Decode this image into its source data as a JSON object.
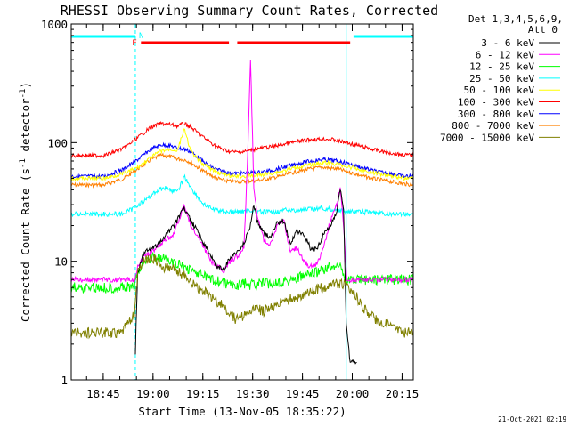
{
  "chart_data": {
    "type": "line",
    "title": "RHESSI Observing Summary Count Rates, Corrected",
    "xlabel": "Start Time (13-Nov-05 18:35:22)",
    "ylabel": "Corrected Count Rate (s⁻¹ detector⁻¹)",
    "ylabel_parts": [
      "Corrected Count Rate (s",
      "-1",
      " detector",
      "-1",
      ")"
    ],
    "y_scale": "log",
    "ylim": [
      1,
      1000
    ],
    "xlim_minutes": [
      0,
      103
    ],
    "y_ticks": [
      {
        "value": 1,
        "label": "1"
      },
      {
        "value": 10,
        "label": "10"
      },
      {
        "value": 100,
        "label": "100"
      },
      {
        "value": 1000,
        "label": "1000"
      }
    ],
    "x_ticks": [
      {
        "minute": 9.63,
        "label": "18:45"
      },
      {
        "minute": 24.63,
        "label": "19:00"
      },
      {
        "minute": 39.63,
        "label": "19:15"
      },
      {
        "minute": 54.63,
        "label": "19:30"
      },
      {
        "minute": 69.63,
        "label": "19:45"
      },
      {
        "minute": 84.63,
        "label": "20:00"
      },
      {
        "minute": 99.63,
        "label": "20:15"
      }
    ],
    "detector_info": [
      "Det 1,3,4,5,6,9,",
      "Att 0"
    ],
    "grid": false,
    "legend_position": "right",
    "series": [
      {
        "name": "3 - 6 keV",
        "color": "#000000",
        "points": [
          [
            19.3,
            1.7
          ],
          [
            20,
            8
          ],
          [
            22,
            12
          ],
          [
            25,
            13
          ],
          [
            28,
            16
          ],
          [
            31,
            20
          ],
          [
            34,
            28
          ],
          [
            36,
            22
          ],
          [
            38,
            18
          ],
          [
            40,
            14
          ],
          [
            42,
            11
          ],
          [
            44,
            9
          ],
          [
            46,
            8.5
          ],
          [
            48,
            11
          ],
          [
            50,
            12
          ],
          [
            52,
            14
          ],
          [
            54,
            20
          ],
          [
            55,
            30
          ],
          [
            56,
            22
          ],
          [
            58,
            17
          ],
          [
            60,
            16
          ],
          [
            62,
            21
          ],
          [
            64,
            22
          ],
          [
            66,
            14
          ],
          [
            68,
            18
          ],
          [
            70,
            17
          ],
          [
            72,
            13
          ],
          [
            74,
            12.5
          ],
          [
            76,
            17
          ],
          [
            78,
            20
          ],
          [
            80,
            26
          ],
          [
            81,
            40
          ],
          [
            82,
            28
          ],
          [
            82.8,
            3
          ],
          [
            84,
            1.4
          ],
          [
            86,
            1.4
          ]
        ]
      },
      {
        "name": "6 - 12 keV",
        "color": "#ff00ff",
        "points": [
          [
            0,
            7
          ],
          [
            19,
            7
          ],
          [
            20,
            9
          ],
          [
            22,
            11
          ],
          [
            25,
            12.5
          ],
          [
            28,
            15
          ],
          [
            31,
            17
          ],
          [
            34,
            30
          ],
          [
            36,
            20
          ],
          [
            38,
            16
          ],
          [
            40,
            13
          ],
          [
            42,
            10
          ],
          [
            44,
            9
          ],
          [
            46,
            8.3
          ],
          [
            48,
            10
          ],
          [
            50,
            11
          ],
          [
            52,
            13
          ],
          [
            53,
            60
          ],
          [
            54,
            500
          ],
          [
            55,
            40
          ],
          [
            56,
            25
          ],
          [
            58,
            15
          ],
          [
            60,
            14
          ],
          [
            62,
            20
          ],
          [
            64,
            22
          ],
          [
            66,
            12
          ],
          [
            68,
            13
          ],
          [
            70,
            10
          ],
          [
            72,
            9
          ],
          [
            74,
            9.5
          ],
          [
            76,
            13
          ],
          [
            78,
            22
          ],
          [
            80,
            30
          ],
          [
            81,
            42
          ],
          [
            82,
            20
          ],
          [
            83,
            7
          ],
          [
            103,
            7
          ]
        ]
      },
      {
        "name": "12 - 25 keV",
        "color": "#00ff00",
        "points": [
          [
            0,
            6
          ],
          [
            19,
            6
          ],
          [
            20,
            8
          ],
          [
            22,
            10
          ],
          [
            25,
            11
          ],
          [
            28,
            10.5
          ],
          [
            31,
            9.5
          ],
          [
            34,
            9
          ],
          [
            36,
            8.5
          ],
          [
            38,
            8
          ],
          [
            40,
            7.5
          ],
          [
            42,
            7
          ],
          [
            44,
            6.8
          ],
          [
            46,
            6.5
          ],
          [
            48,
            6.3
          ],
          [
            50,
            6.3
          ],
          [
            52,
            6.5
          ],
          [
            54,
            6.3
          ],
          [
            56,
            6.5
          ],
          [
            58,
            6.5
          ],
          [
            60,
            6.5
          ],
          [
            62,
            6.7
          ],
          [
            64,
            6.8
          ],
          [
            66,
            7
          ],
          [
            68,
            7.2
          ],
          [
            70,
            7.5
          ],
          [
            72,
            7.8
          ],
          [
            74,
            8
          ],
          [
            76,
            8.5
          ],
          [
            78,
            9
          ],
          [
            80,
            9.5
          ],
          [
            82,
            8
          ],
          [
            83,
            7
          ],
          [
            103,
            7
          ]
        ]
      },
      {
        "name": "25 - 50 keV",
        "color": "#00ffff",
        "points": [
          [
            0,
            25
          ],
          [
            15,
            25
          ],
          [
            18,
            27
          ],
          [
            20,
            30
          ],
          [
            22,
            32
          ],
          [
            25,
            38
          ],
          [
            28,
            42
          ],
          [
            30,
            40
          ],
          [
            32,
            38
          ],
          [
            34,
            52
          ],
          [
            36,
            42
          ],
          [
            38,
            35
          ],
          [
            40,
            30
          ],
          [
            42,
            28
          ],
          [
            44,
            27
          ],
          [
            46,
            26.5
          ],
          [
            48,
            26
          ],
          [
            50,
            26
          ],
          [
            52,
            26.5
          ],
          [
            54,
            27
          ],
          [
            56,
            26
          ],
          [
            60,
            26
          ],
          [
            65,
            27
          ],
          [
            70,
            27
          ],
          [
            75,
            28
          ],
          [
            80,
            27
          ],
          [
            85,
            26
          ],
          [
            90,
            26
          ],
          [
            95,
            25
          ],
          [
            103,
            25
          ]
        ]
      },
      {
        "name": "50 - 100 keV",
        "color": "#ffff00",
        "points": [
          [
            0,
            50
          ],
          [
            10,
            50
          ],
          [
            16,
            55
          ],
          [
            20,
            62
          ],
          [
            24,
            75
          ],
          [
            27,
            85
          ],
          [
            30,
            88
          ],
          [
            32,
            86
          ],
          [
            34,
            130
          ],
          [
            36,
            85
          ],
          [
            38,
            72
          ],
          [
            40,
            65
          ],
          [
            42,
            60
          ],
          [
            44,
            56
          ],
          [
            46,
            54
          ],
          [
            48,
            52
          ],
          [
            52,
            52
          ],
          [
            56,
            53
          ],
          [
            60,
            55
          ],
          [
            64,
            58
          ],
          [
            68,
            62
          ],
          [
            72,
            65
          ],
          [
            76,
            68
          ],
          [
            80,
            66
          ],
          [
            84,
            62
          ],
          [
            88,
            58
          ],
          [
            92,
            55
          ],
          [
            96,
            53
          ],
          [
            100,
            50
          ],
          [
            103,
            50
          ]
        ]
      },
      {
        "name": "100 - 300 keV",
        "color": "#ff0000",
        "points": [
          [
            0,
            78
          ],
          [
            10,
            78
          ],
          [
            16,
            90
          ],
          [
            20,
            110
          ],
          [
            24,
            135
          ],
          [
            27,
            145
          ],
          [
            30,
            142
          ],
          [
            32,
            138
          ],
          [
            34,
            145
          ],
          [
            36,
            135
          ],
          [
            38,
            122
          ],
          [
            40,
            110
          ],
          [
            42,
            100
          ],
          [
            44,
            92
          ],
          [
            46,
            87
          ],
          [
            48,
            84
          ],
          [
            50,
            83
          ],
          [
            52,
            84
          ],
          [
            54,
            86
          ],
          [
            56,
            89
          ],
          [
            60,
            92
          ],
          [
            64,
            97
          ],
          [
            68,
            102
          ],
          [
            72,
            106
          ],
          [
            76,
            107
          ],
          [
            78,
            107
          ],
          [
            80,
            104
          ],
          [
            84,
            98
          ],
          [
            88,
            92
          ],
          [
            92,
            86
          ],
          [
            96,
            82
          ],
          [
            100,
            79
          ],
          [
            103,
            78
          ]
        ]
      },
      {
        "name": "300 - 800 keV",
        "color": "#0000ff",
        "points": [
          [
            0,
            52
          ],
          [
            10,
            52
          ],
          [
            16,
            60
          ],
          [
            20,
            72
          ],
          [
            24,
            88
          ],
          [
            27,
            96
          ],
          [
            30,
            94
          ],
          [
            32,
            90
          ],
          [
            34,
            88
          ],
          [
            36,
            84
          ],
          [
            38,
            76
          ],
          [
            40,
            68
          ],
          [
            42,
            63
          ],
          [
            44,
            59
          ],
          [
            46,
            57
          ],
          [
            48,
            55
          ],
          [
            52,
            55
          ],
          [
            56,
            56
          ],
          [
            60,
            58
          ],
          [
            64,
            62
          ],
          [
            68,
            66
          ],
          [
            72,
            70
          ],
          [
            76,
            72
          ],
          [
            80,
            70
          ],
          [
            84,
            66
          ],
          [
            88,
            61
          ],
          [
            92,
            57
          ],
          [
            96,
            55
          ],
          [
            100,
            52
          ],
          [
            103,
            52
          ]
        ]
      },
      {
        "name": "800 - 7000 keV",
        "color": "#ff8000",
        "points": [
          [
            0,
            44
          ],
          [
            10,
            44
          ],
          [
            16,
            50
          ],
          [
            20,
            60
          ],
          [
            24,
            72
          ],
          [
            27,
            78
          ],
          [
            30,
            76
          ],
          [
            32,
            73
          ],
          [
            34,
            72
          ],
          [
            36,
            68
          ],
          [
            38,
            62
          ],
          [
            40,
            57
          ],
          [
            42,
            53
          ],
          [
            44,
            50
          ],
          [
            46,
            48
          ],
          [
            48,
            47
          ],
          [
            52,
            47
          ],
          [
            56,
            48
          ],
          [
            60,
            50
          ],
          [
            64,
            53
          ],
          [
            68,
            57
          ],
          [
            72,
            60
          ],
          [
            76,
            62
          ],
          [
            80,
            60
          ],
          [
            84,
            56
          ],
          [
            88,
            52
          ],
          [
            92,
            49
          ],
          [
            96,
            47
          ],
          [
            100,
            45
          ],
          [
            103,
            44
          ]
        ]
      },
      {
        "name": "7000 - 15000 keV",
        "color": "#808000",
        "points": [
          [
            0,
            2.5
          ],
          [
            15,
            2.5
          ],
          [
            17,
            3
          ],
          [
            19,
            3.5
          ],
          [
            20,
            8
          ],
          [
            22,
            10
          ],
          [
            25,
            10.5
          ],
          [
            28,
            9
          ],
          [
            31,
            8.5
          ],
          [
            34,
            7.5
          ],
          [
            36,
            6.5
          ],
          [
            38,
            6
          ],
          [
            40,
            5.5
          ],
          [
            42,
            5
          ],
          [
            44,
            4.5
          ],
          [
            46,
            4.2
          ],
          [
            48,
            3.5
          ],
          [
            50,
            3.2
          ],
          [
            52,
            3.5
          ],
          [
            54,
            3.8
          ],
          [
            56,
            4
          ],
          [
            58,
            3.8
          ],
          [
            60,
            4
          ],
          [
            62,
            4.2
          ],
          [
            64,
            4.5
          ],
          [
            66,
            4.8
          ],
          [
            68,
            5
          ],
          [
            70,
            5.2
          ],
          [
            72,
            5.5
          ],
          [
            74,
            5.8
          ],
          [
            76,
            6
          ],
          [
            78,
            6.2
          ],
          [
            80,
            6.5
          ],
          [
            82,
            6.5
          ],
          [
            83,
            6
          ],
          [
            86,
            5
          ],
          [
            88,
            4
          ],
          [
            90,
            3.5
          ],
          [
            92,
            3.2
          ],
          [
            95,
            3
          ],
          [
            100,
            2.5
          ],
          [
            103,
            2.5
          ]
        ]
      }
    ],
    "state_flags": {
      "night_label": "N",
      "night_intervals_minutes": [
        [
          0,
          19.3
        ],
        [
          85,
          103
        ]
      ],
      "night_color": "#00ffff",
      "flare_label": "F",
      "flare_intervals_minutes": [
        [
          21,
          47.5
        ],
        [
          50,
          84
        ]
      ],
      "flare_color": "#ff0000"
    },
    "vertical_markers": {
      "solid_minutes": [
        0,
        82.8
      ],
      "dashed_minutes": [
        19.3,
        103
      ],
      "color": "#00ffff"
    }
  },
  "timestamp": "21-Oct-2021 02:19"
}
